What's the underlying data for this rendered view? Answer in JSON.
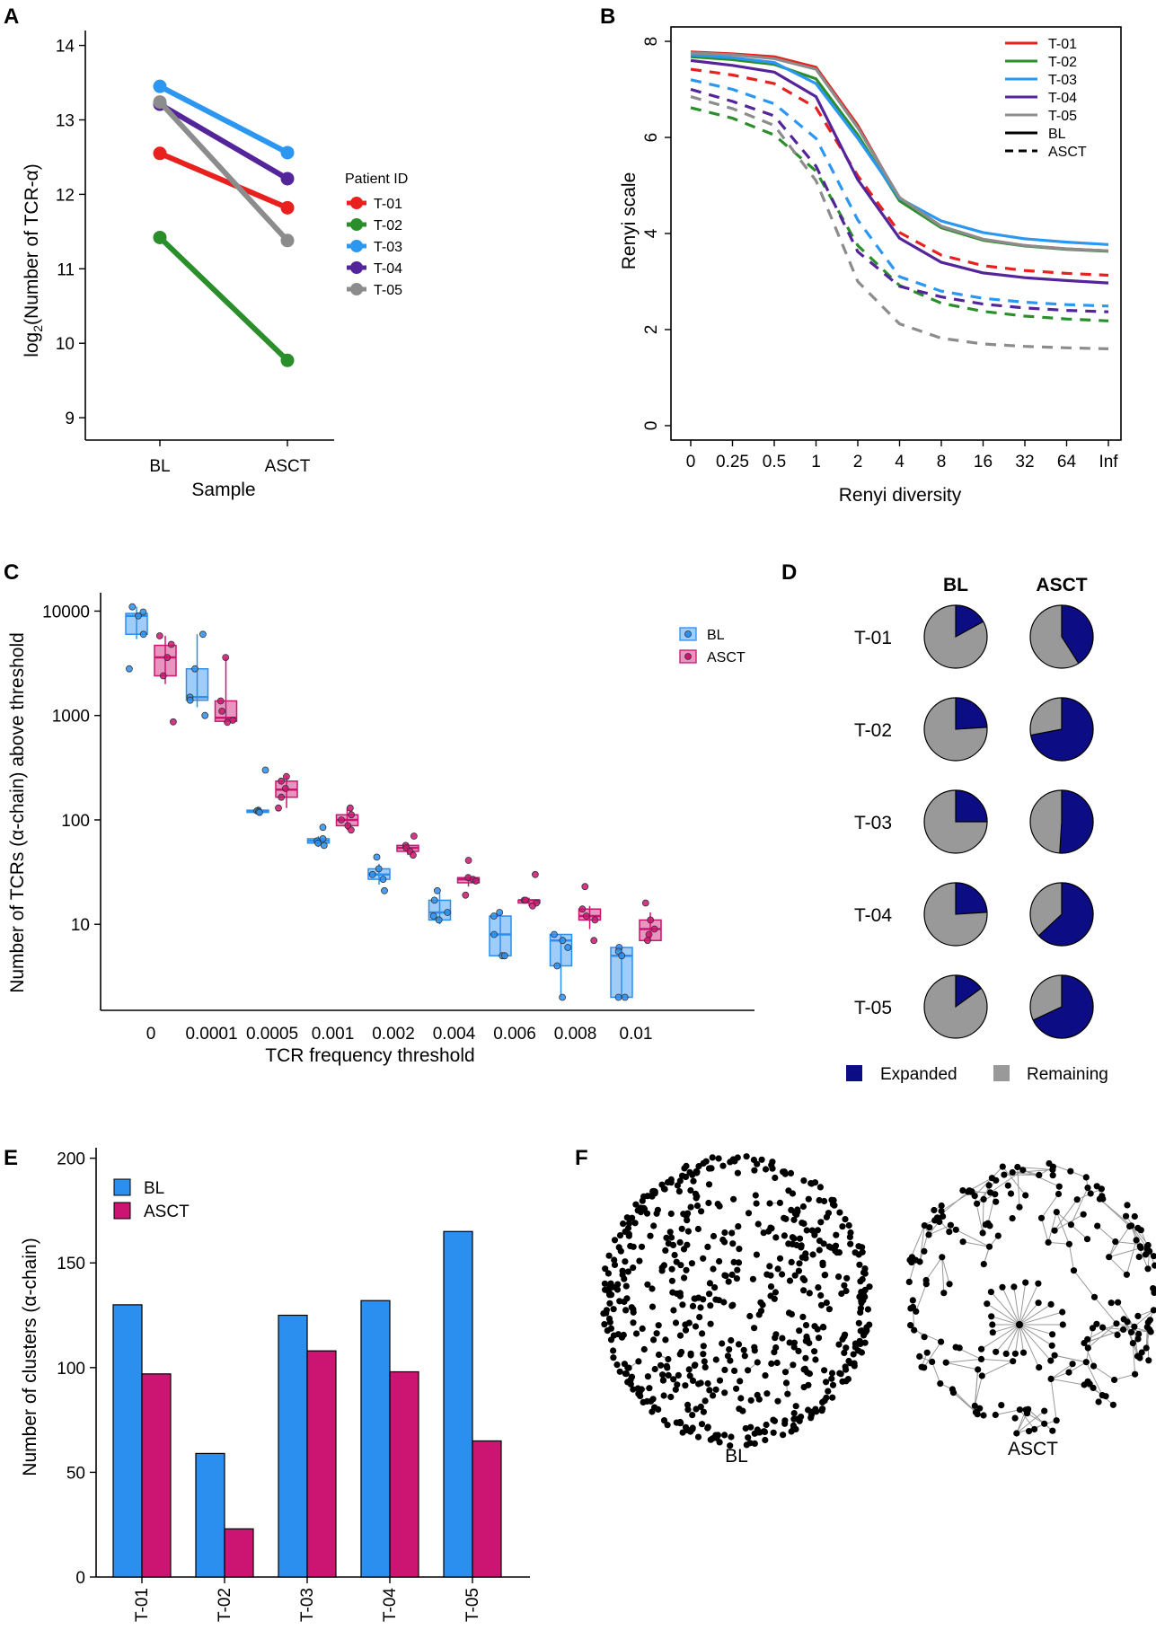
{
  "colors": {
    "T-01": "#e8211f",
    "T-02": "#2a8f2a",
    "T-03": "#2b97f0",
    "T-04": "#54249b",
    "T-05": "#8c8c8c",
    "bl_blue": "#2b8ff0",
    "asct_pink": "#cc1473",
    "expanded": "#0c0c84",
    "remaining": "#999999"
  },
  "chart_data": [
    {
      "id": "A",
      "panel_label": "A",
      "type": "line",
      "categories": [
        "BL",
        "ASCT"
      ],
      "series": [
        {
          "name": "T-01",
          "values": [
            12.55,
            11.82
          ]
        },
        {
          "name": "T-02",
          "values": [
            11.42,
            9.77
          ]
        },
        {
          "name": "T-03",
          "values": [
            13.45,
            12.56
          ]
        },
        {
          "name": "T-04",
          "values": [
            13.21,
            12.21
          ]
        },
        {
          "name": "T-05",
          "values": [
            13.24,
            11.38
          ]
        }
      ],
      "xlabel": "Sample",
      "ylabel": "log2(Number of TCR-α)",
      "ylabel_parts": [
        "log",
        "2",
        "(Number of TCR-α)"
      ],
      "ylim": [
        8.7,
        14.2
      ],
      "yticks": [
        "9",
        "10",
        "11",
        "12",
        "13",
        "14"
      ],
      "legend_title": "Patient ID",
      "legend": [
        "T-01",
        "T-02",
        "T-03",
        "T-04",
        "T-05"
      ]
    },
    {
      "id": "B",
      "panel_label": "B",
      "type": "line",
      "categories": [
        "0",
        "0.25",
        "0.5",
        "1",
        "2",
        "4",
        "8",
        "16",
        "32",
        "64",
        "Inf"
      ],
      "series": [
        {
          "name": "T-01",
          "style": "BL",
          "values": [
            7.78,
            7.74,
            7.68,
            7.46,
            6.25,
            4.72,
            4.15,
            3.88,
            3.75,
            3.68,
            3.64
          ]
        },
        {
          "name": "T-02",
          "style": "BL",
          "values": [
            7.68,
            7.62,
            7.52,
            7.22,
            6.05,
            4.68,
            4.12,
            3.86,
            3.74,
            3.67,
            3.63
          ]
        },
        {
          "name": "T-03",
          "style": "BL",
          "values": [
            7.72,
            7.66,
            7.56,
            7.12,
            5.98,
            4.73,
            4.26,
            4.02,
            3.89,
            3.82,
            3.77
          ]
        },
        {
          "name": "T-04",
          "style": "BL",
          "values": [
            7.6,
            7.5,
            7.36,
            6.85,
            5.12,
            3.9,
            3.4,
            3.18,
            3.08,
            3.02,
            2.97
          ]
        },
        {
          "name": "T-05",
          "style": "BL",
          "values": [
            7.76,
            7.72,
            7.64,
            7.42,
            6.2,
            4.75,
            4.15,
            3.88,
            3.75,
            3.68,
            3.64
          ]
        },
        {
          "name": "T-01",
          "style": "ASCT",
          "values": [
            7.42,
            7.3,
            7.12,
            6.62,
            5.2,
            4.02,
            3.55,
            3.33,
            3.23,
            3.17,
            3.13
          ]
        },
        {
          "name": "T-02",
          "style": "ASCT",
          "values": [
            6.62,
            6.4,
            6.05,
            5.3,
            3.75,
            2.92,
            2.55,
            2.38,
            2.28,
            2.22,
            2.18
          ]
        },
        {
          "name": "T-03",
          "style": "ASCT",
          "values": [
            7.2,
            7.0,
            6.7,
            5.98,
            4.28,
            3.1,
            2.8,
            2.65,
            2.57,
            2.52,
            2.49
          ]
        },
        {
          "name": "T-04",
          "style": "ASCT",
          "values": [
            7.0,
            6.75,
            6.45,
            5.4,
            3.62,
            2.9,
            2.68,
            2.53,
            2.45,
            2.4,
            2.37
          ]
        },
        {
          "name": "T-05",
          "style": "ASCT",
          "values": [
            6.85,
            6.6,
            6.25,
            5.1,
            3.0,
            2.12,
            1.82,
            1.7,
            1.65,
            1.62,
            1.6
          ]
        }
      ],
      "xlabel": "Renyi diversity",
      "ylabel": "Renyi scale",
      "ylim": [
        -0.3,
        8.3
      ],
      "yticks": [
        "0",
        "2",
        "4",
        "6",
        "8"
      ],
      "legend": [
        "T-01",
        "T-02",
        "T-03",
        "T-04",
        "T-05",
        "BL",
        "ASCT"
      ]
    },
    {
      "id": "C",
      "panel_label": "C",
      "type": "box",
      "categories": [
        "0",
        "0.0001",
        "0.0005",
        "0.001",
        "0.002",
        "0.004",
        "0.006",
        "0.008",
        "0.01"
      ],
      "yscale": "log10",
      "ylim": [
        1.5,
        15000
      ],
      "yticks": [
        "10",
        "100",
        "1000",
        "10000"
      ],
      "xlabel": "TCR frequency threshold",
      "ylabel": "Number of TCRs (α-chain) above threshold",
      "legend": [
        "BL",
        "ASCT"
      ],
      "series": [
        {
          "name": "BL",
          "boxes": [
            {
              "whisker_low": 5400,
              "q1": 6000,
              "median": 9000,
              "q3": 9500,
              "whisker_high": 11000,
              "points": [
                11000,
                9800,
                9000,
                6000,
                2800
              ]
            },
            {
              "whisker_low": 1200,
              "q1": 1400,
              "median": 1500,
              "q3": 2800,
              "whisker_high": 6000,
              "points": [
                6000,
                2800,
                1500,
                1400,
                1000
              ]
            },
            {
              "whisker_low": 115,
              "q1": 118,
              "median": 121,
              "q3": 124,
              "whisker_high": 128,
              "points": [
                300,
                124,
                122,
                120,
                118
              ]
            },
            {
              "whisker_low": 55,
              "q1": 60,
              "median": 63,
              "q3": 66,
              "whisker_high": 70,
              "points": [
                85,
                66,
                63,
                60,
                57
              ]
            },
            {
              "whisker_low": 24,
              "q1": 27,
              "median": 30,
              "q3": 34,
              "whisker_high": 38,
              "points": [
                44,
                34,
                30,
                27,
                21
              ]
            },
            {
              "whisker_low": 10,
              "q1": 11,
              "median": 13,
              "q3": 17,
              "whisker_high": 20,
              "points": [
                21,
                17,
                13,
                12,
                11
              ]
            },
            {
              "whisker_low": 5,
              "q1": 5,
              "median": 8,
              "q3": 12,
              "whisker_high": 13,
              "points": [
                13,
                12,
                8,
                5,
                5
              ]
            },
            {
              "whisker_low": 2,
              "q1": 4,
              "median": 7,
              "q3": 8,
              "whisker_high": 8,
              "points": [
                8,
                7,
                6,
                4,
                2
              ]
            },
            {
              "whisker_low": 2,
              "q1": 2,
              "median": 5,
              "q3": 6,
              "whisker_high": 6,
              "points": [
                6,
                5.5,
                5,
                2,
                2
              ]
            }
          ]
        },
        {
          "name": "ASCT",
          "boxes": [
            {
              "whisker_low": 2000,
              "q1": 2400,
              "median": 3600,
              "q3": 4700,
              "whisker_high": 5800,
              "points": [
                5800,
                4800,
                3600,
                2400,
                870
              ]
            },
            {
              "whisker_low": 850,
              "q1": 880,
              "median": 950,
              "q3": 1380,
              "whisker_high": 3600,
              "points": [
                3600,
                1380,
                1100,
                900,
                860
              ]
            },
            {
              "whisker_low": 130,
              "q1": 165,
              "median": 195,
              "q3": 235,
              "whisker_high": 265,
              "points": [
                260,
                235,
                200,
                165,
                130
              ]
            },
            {
              "whisker_low": 80,
              "q1": 88,
              "median": 100,
              "q3": 112,
              "whisker_high": 130,
              "points": [
                130,
                112,
                100,
                88,
                80
              ]
            },
            {
              "whisker_low": 46,
              "q1": 50,
              "median": 54,
              "q3": 57,
              "whisker_high": 60,
              "points": [
                70,
                57,
                54,
                50,
                46
              ]
            },
            {
              "whisker_low": 23,
              "q1": 25,
              "median": 27,
              "q3": 28,
              "whisker_high": 30,
              "points": [
                41,
                28,
                27,
                26,
                19
              ]
            },
            {
              "whisker_low": 15,
              "q1": 16,
              "median": 17,
              "q3": 17,
              "whisker_high": 18,
              "points": [
                30,
                17,
                17,
                16,
                15
              ]
            },
            {
              "whisker_low": 9,
              "q1": 11,
              "median": 12,
              "q3": 14,
              "whisker_high": 15,
              "points": [
                23,
                14,
                12,
                11,
                7
              ]
            },
            {
              "whisker_low": 7,
              "q1": 7,
              "median": 9,
              "q3": 11,
              "whisker_high": 13,
              "points": [
                16,
                11,
                9,
                8,
                7
              ]
            }
          ]
        }
      ]
    },
    {
      "id": "D",
      "panel_label": "D",
      "type": "pie",
      "columns": [
        "BL",
        "ASCT"
      ],
      "rows": [
        "T-01",
        "T-02",
        "T-03",
        "T-04",
        "T-05"
      ],
      "expanded_fraction": {
        "BL": [
          0.17,
          0.24,
          0.25,
          0.24,
          0.15
        ],
        "ASCT": [
          0.41,
          0.72,
          0.51,
          0.63,
          0.68
        ]
      },
      "legend": [
        "Expanded",
        "Remaining"
      ]
    },
    {
      "id": "E",
      "panel_label": "E",
      "type": "bar",
      "categories": [
        "T-01",
        "T-02",
        "T-03",
        "T-04",
        "T-05"
      ],
      "series": [
        {
          "name": "BL",
          "values": [
            130,
            59,
            125,
            132,
            165
          ]
        },
        {
          "name": "ASCT",
          "values": [
            97,
            23,
            108,
            98,
            65
          ]
        }
      ],
      "ylabel": "Number of clusters (α-chain)",
      "ylim": [
        0,
        205
      ],
      "yticks": [
        "0",
        "50",
        "100",
        "150",
        "200"
      ],
      "legend": [
        "BL",
        "ASCT"
      ]
    },
    {
      "id": "F",
      "panel_label": "F",
      "type": "network",
      "networks": [
        {
          "name": "BL",
          "node_count": 620,
          "edge_count": 70
        },
        {
          "name": "ASCT",
          "node_count": 200,
          "edge_count": 175,
          "hub_degree": 22
        }
      ]
    }
  ]
}
